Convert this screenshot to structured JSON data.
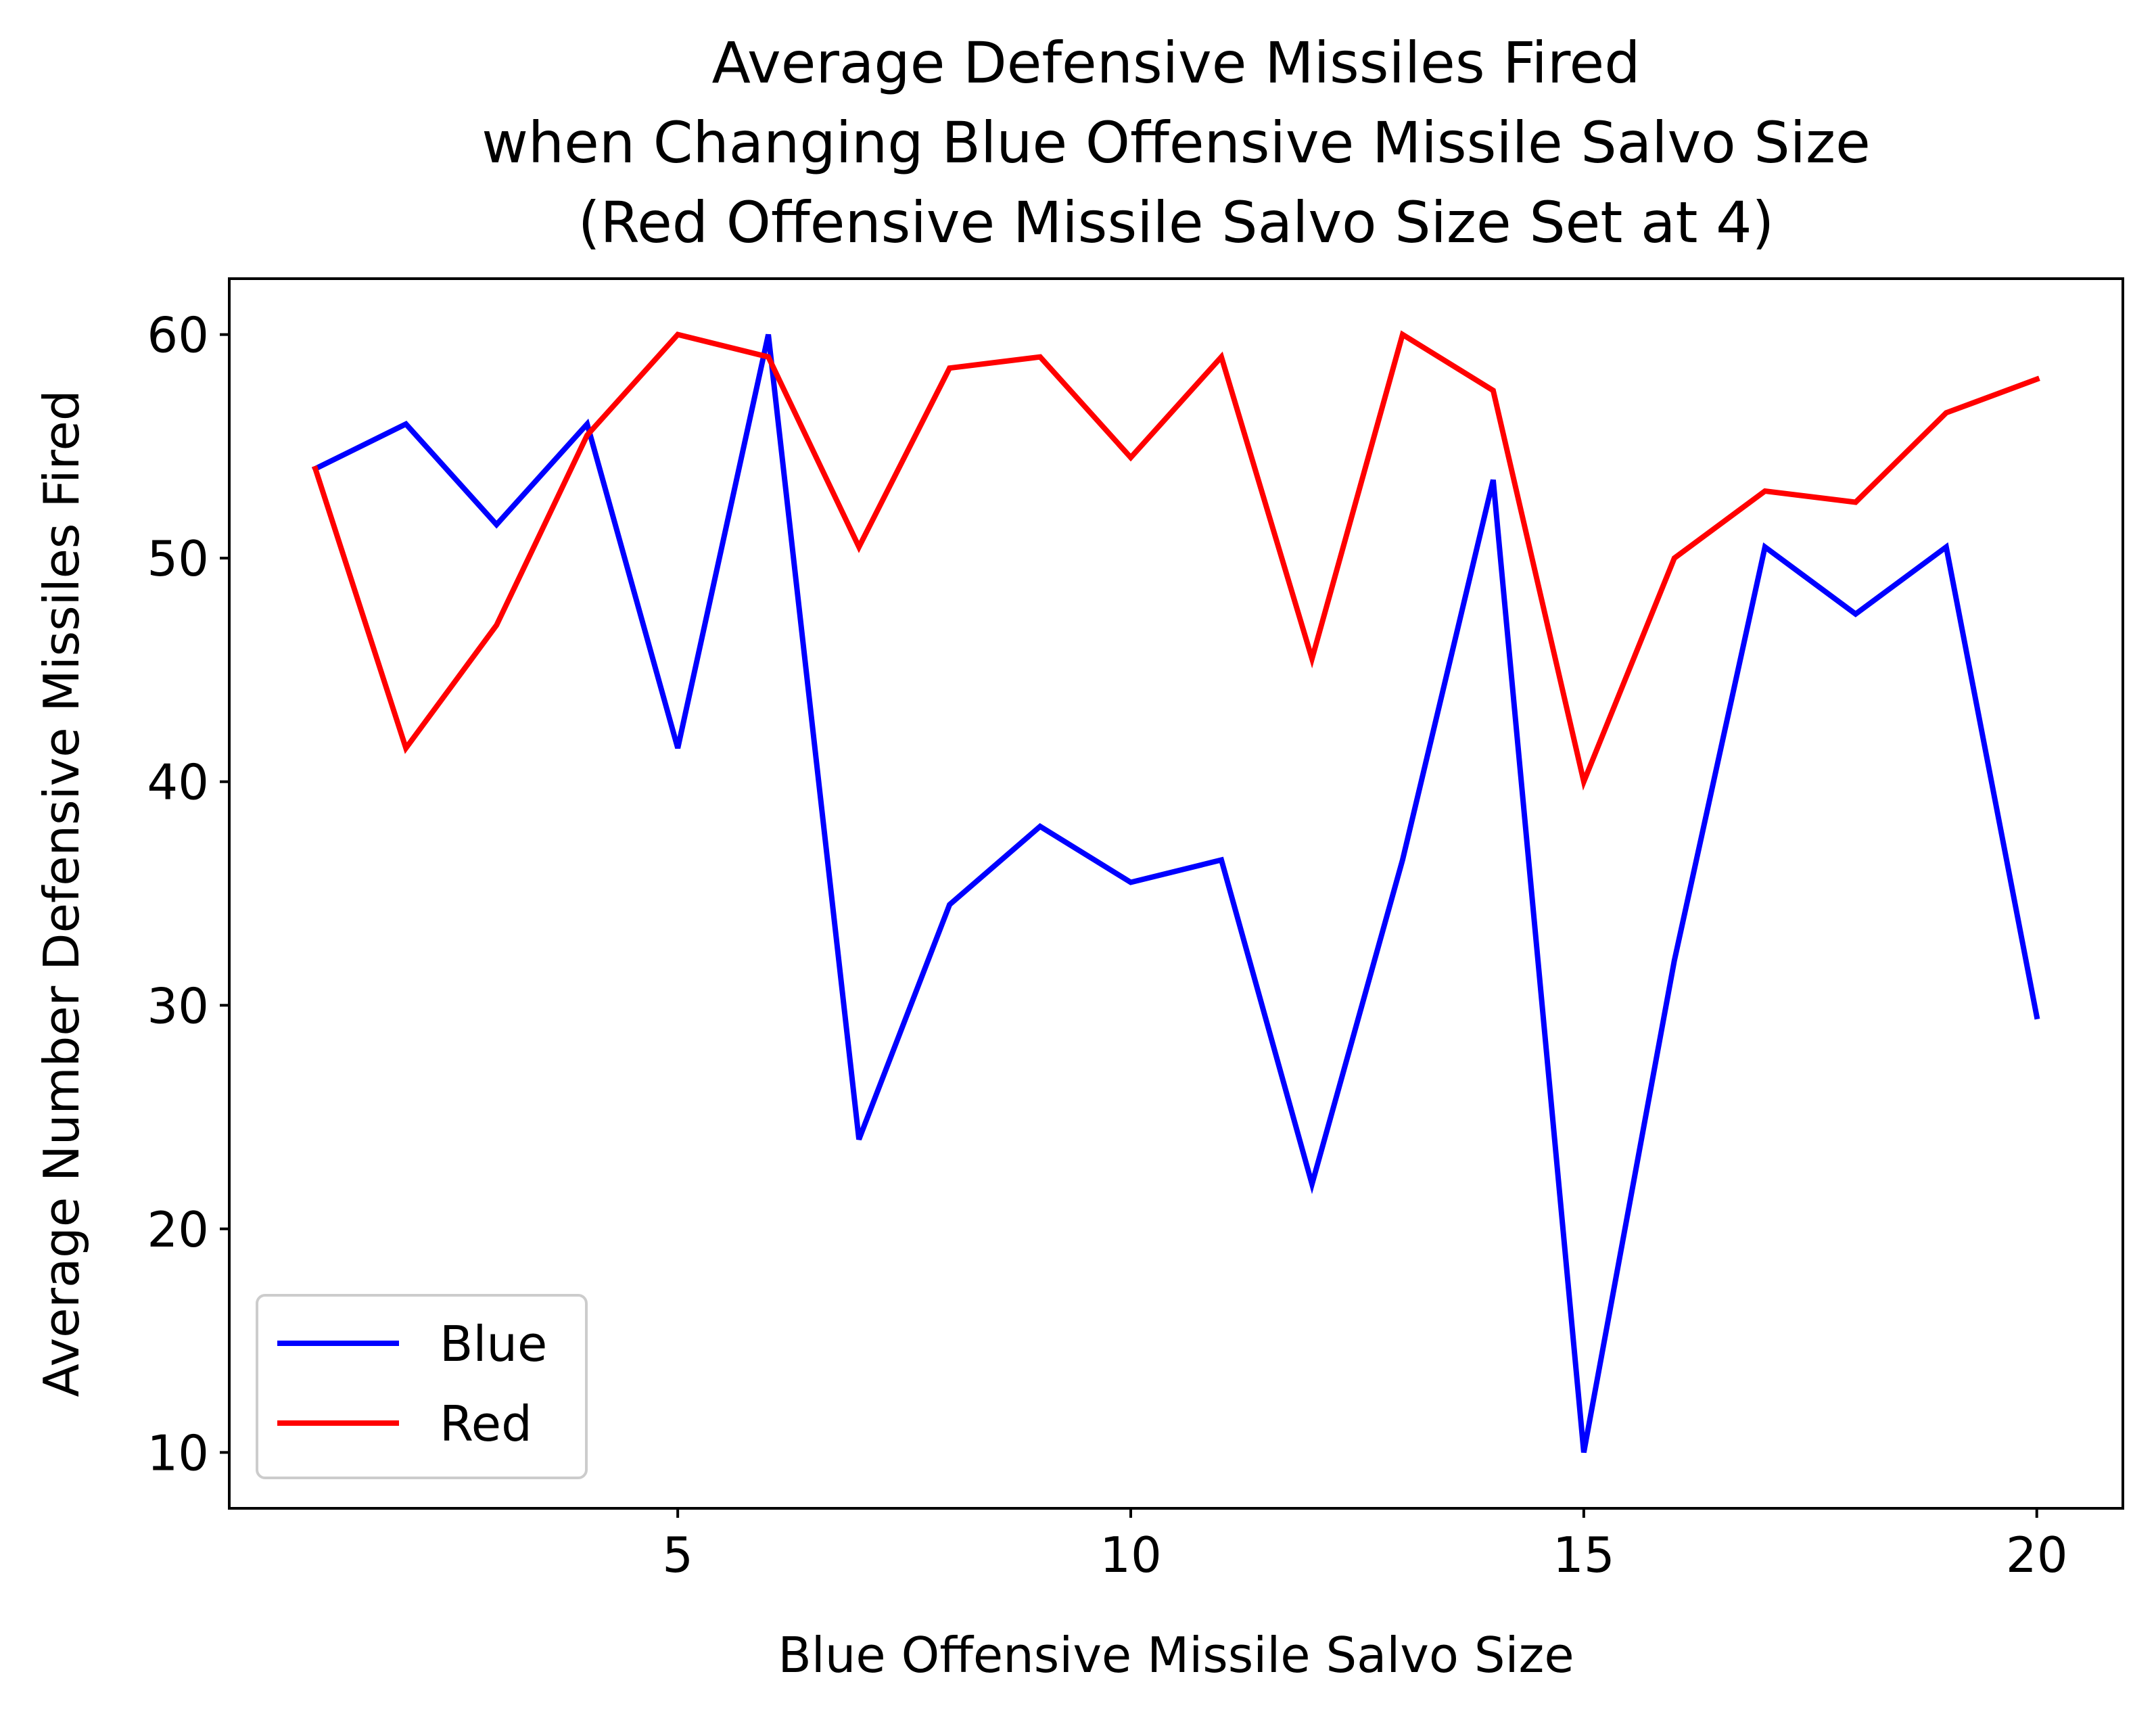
{
  "chart_data": {
    "type": "line",
    "title_lines": [
      "Average Defensive Missiles Fired",
      "when Changing Blue Offensive Missile Salvo Size",
      "(Red Offensive Missile Salvo Size Set at 4)"
    ],
    "xlabel": "Blue Offensive Missile Salvo Size",
    "ylabel": "Average Number Defensive Missiles Fired",
    "xlim": [
      0.05,
      20.95
    ],
    "ylim": [
      7.5,
      62.5
    ],
    "xticks": [
      5,
      10,
      15,
      20
    ],
    "yticks": [
      10,
      20,
      30,
      40,
      50,
      60
    ],
    "grid": false,
    "legend_position": "lower-left",
    "x": [
      1,
      2,
      3,
      4,
      5,
      6,
      7,
      8,
      9,
      10,
      11,
      12,
      13,
      14,
      15,
      16,
      17,
      18,
      19,
      20
    ],
    "series": [
      {
        "name": "Blue",
        "color": "#0000ff",
        "values": [
          54,
          56,
          51.5,
          56,
          41.5,
          60,
          24,
          34.5,
          38,
          35.5,
          36.5,
          22,
          36.5,
          53.5,
          10,
          32,
          50.5,
          47.5,
          50.5,
          29.5
        ]
      },
      {
        "name": "Red",
        "color": "#ff0000",
        "values": [
          54,
          41.5,
          47,
          55.5,
          60,
          59,
          50.5,
          58.5,
          59,
          54.5,
          59,
          45.5,
          60,
          57.5,
          40,
          50,
          53,
          52.5,
          56.5,
          58
        ]
      }
    ]
  }
}
